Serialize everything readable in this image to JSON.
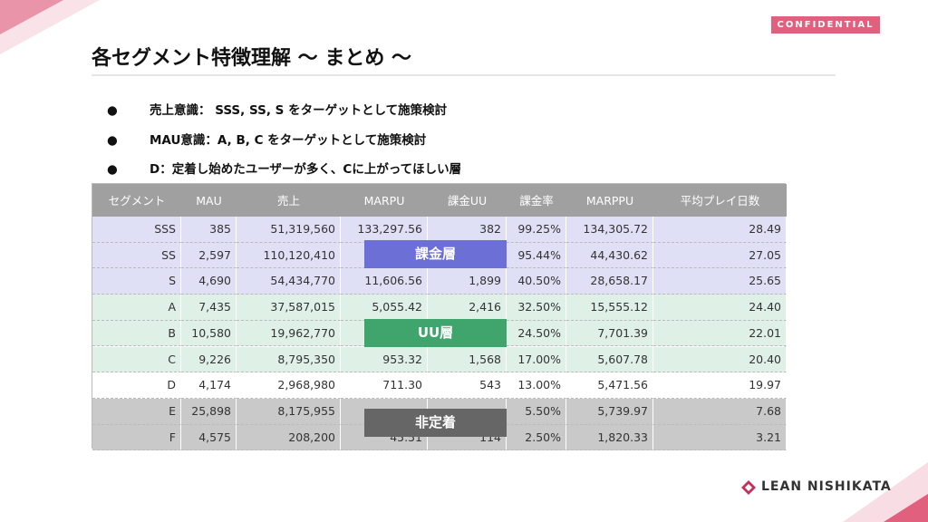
{
  "header": {
    "badge": "CONFIDENTIAL",
    "title": "各セグメント特徴理解 〜 まとめ 〜"
  },
  "bullets": [
    "売上意識： SSS, SS, S をターゲットとして施策検討",
    "MAU意識：A, B, C をターゲットとして施策検討",
    "D：定着し始めたユーザーが多く、Cに上がってほしい層"
  ],
  "table": {
    "header": [
      "セグメント",
      "MAU",
      "売上",
      "MARPU",
      "課金UU",
      "課金率",
      "MARPPU",
      "平均プレイ日数"
    ],
    "rows": [
      [
        "SSS",
        "385",
        "51,319,560",
        "133,297.56",
        "382",
        "99.25%",
        "134,305.72",
        "28.49"
      ],
      [
        "SS",
        "2,597",
        "110,120,410",
        null,
        null,
        "95.44%",
        "44,430.62",
        "27.05"
      ],
      [
        "S",
        "4,690",
        "54,434,770",
        "11,606.56",
        "1,899",
        "40.50%",
        "28,658.17",
        "25.65"
      ],
      [
        "A",
        "7,435",
        "37,587,015",
        "5,055.42",
        "2,416",
        "32.50%",
        "15,555.12",
        "24.40"
      ],
      [
        "B",
        "10,580",
        "19,962,770",
        null,
        null,
        "24.50%",
        "7,701.39",
        "22.01"
      ],
      [
        "C",
        "9,226",
        "8,795,350",
        "953.32",
        "1,568",
        "17.00%",
        "5,607.78",
        "20.40"
      ],
      [
        "D",
        "4,174",
        "2,968,980",
        "711.30",
        "543",
        "13.00%",
        "5,471.56",
        "19.97"
      ],
      [
        "E",
        "25,898",
        "8,175,955",
        null,
        null,
        "5.50%",
        "5,739.97",
        "7.68"
      ],
      [
        "F",
        "4,575",
        "208,200",
        "45.51",
        "114",
        "2.50%",
        "1,820.33",
        "3.21"
      ]
    ]
  },
  "overlays": [
    "課金層",
    "UU層",
    "非定着"
  ],
  "logo": "LEAN NISHIKATA"
}
